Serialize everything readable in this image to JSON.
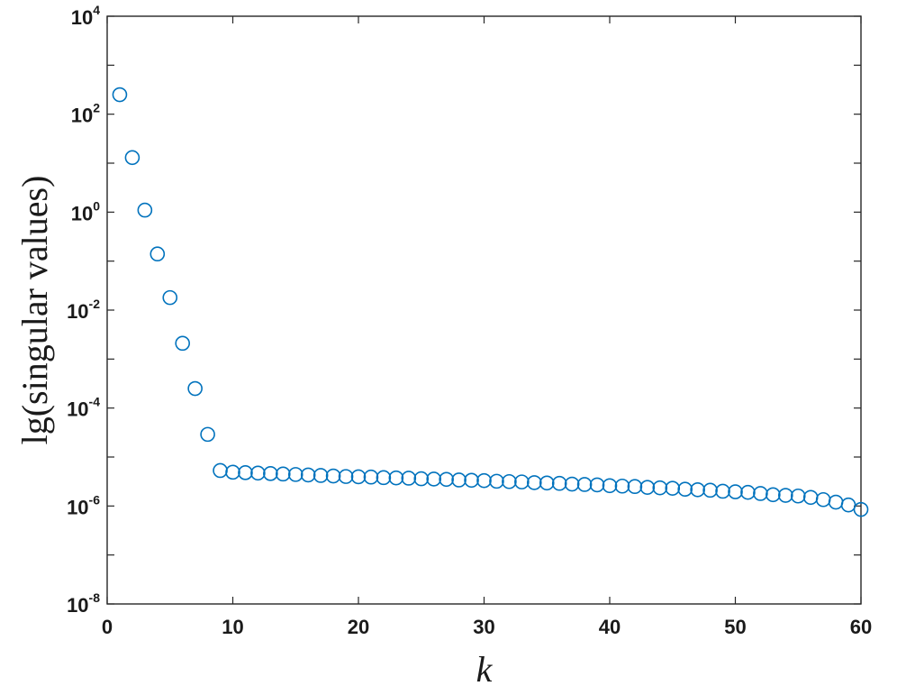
{
  "chart_data": {
    "type": "scatter",
    "title": "",
    "xlabel": "k",
    "ylabel": "lg(singular values)",
    "xlim": [
      0,
      60
    ],
    "ylim": [
      1e-08,
      10000.0
    ],
    "yscale": "log",
    "grid": false,
    "marker": "circle-open",
    "color": "#0072BD",
    "x_ticks": [
      0,
      10,
      20,
      30,
      40,
      50,
      60
    ],
    "y_ticks": [
      {
        "value": 1e-08,
        "base": "10",
        "exp": "-8"
      },
      {
        "value": 1e-06,
        "base": "10",
        "exp": "-6"
      },
      {
        "value": 0.0001,
        "base": "10",
        "exp": "-4"
      },
      {
        "value": 0.01,
        "base": "10",
        "exp": "-2"
      },
      {
        "value": 1,
        "base": "10",
        "exp": "0"
      },
      {
        "value": 100,
        "base": "10",
        "exp": "2"
      },
      {
        "value": 10000,
        "base": "10",
        "exp": "4"
      }
    ],
    "x": [
      1,
      2,
      3,
      4,
      5,
      6,
      7,
      8,
      9,
      10,
      11,
      12,
      13,
      14,
      15,
      16,
      17,
      18,
      19,
      20,
      21,
      22,
      23,
      24,
      25,
      26,
      27,
      28,
      29,
      30,
      31,
      32,
      33,
      34,
      35,
      36,
      37,
      38,
      39,
      40,
      41,
      42,
      43,
      44,
      45,
      46,
      47,
      48,
      49,
      50,
      51,
      52,
      53,
      54,
      55,
      56,
      57,
      58,
      59,
      60
    ],
    "y": [
      250,
      13,
      1.1,
      0.14,
      0.018,
      0.0021,
      0.00025,
      2.9e-05,
      5.3e-06,
      4.9e-06,
      4.8e-06,
      4.7e-06,
      4.6e-06,
      4.5e-06,
      4.4e-06,
      4.3e-06,
      4.2e-06,
      4.1e-06,
      4e-06,
      3.95e-06,
      3.9e-06,
      3.8e-06,
      3.75e-06,
      3.7e-06,
      3.6e-06,
      3.55e-06,
      3.5e-06,
      3.4e-06,
      3.35e-06,
      3.3e-06,
      3.2e-06,
      3.15e-06,
      3.1e-06,
      3e-06,
      2.95e-06,
      2.9e-06,
      2.8e-06,
      2.75e-06,
      2.7e-06,
      2.6e-06,
      2.55e-06,
      2.5e-06,
      2.4e-06,
      2.35e-06,
      2.3e-06,
      2.2e-06,
      2.15e-06,
      2.1e-06,
      2e-06,
      1.95e-06,
      1.9e-06,
      1.8e-06,
      1.7e-06,
      1.65e-06,
      1.6e-06,
      1.5e-06,
      1.35e-06,
      1.2e-06,
      1.05e-06,
      8.5e-07
    ]
  }
}
